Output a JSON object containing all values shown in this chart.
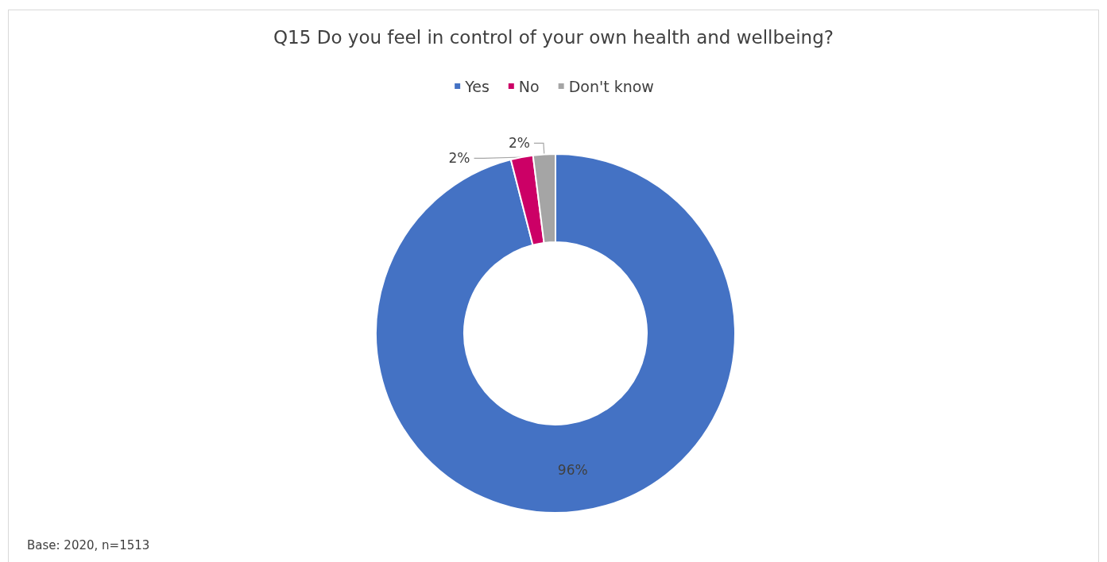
{
  "chart_data": {
    "type": "donut",
    "title": "Q15 Do you feel in control of your own health and wellbeing?",
    "categories": [
      "Yes",
      "No",
      "Don't know"
    ],
    "values": [
      96,
      2,
      2
    ],
    "colors": [
      "#4472c4",
      "#cc0066",
      "#a5a5a5"
    ],
    "value_labels": [
      "96%",
      "2%",
      "2%"
    ],
    "legend": "top",
    "annotations": [
      "Base: 2020, n=1513"
    ]
  }
}
